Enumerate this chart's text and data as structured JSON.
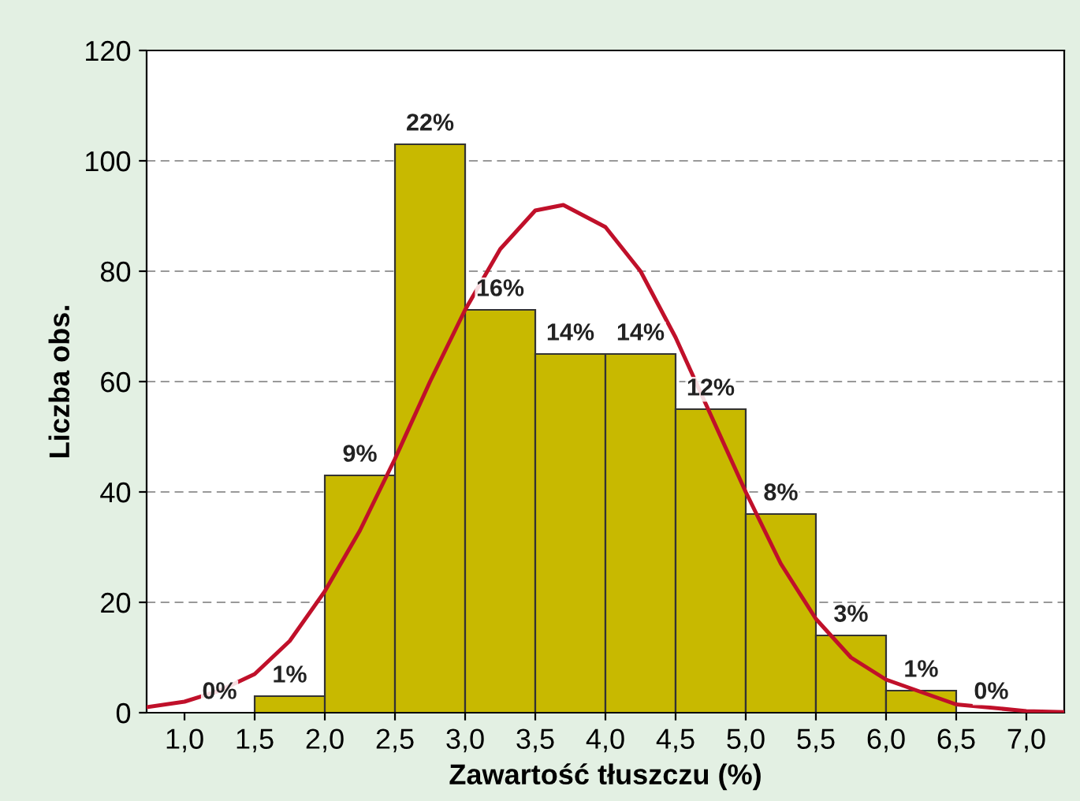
{
  "chart_data": {
    "type": "histogram",
    "xlabel": "Zawartość tłuszczu (%)",
    "ylabel": "Liczba obs.",
    "bins": [
      1.0,
      1.5,
      2.0,
      2.5,
      3.0,
      3.5,
      4.0,
      4.5,
      5.0,
      5.5,
      6.0,
      6.5,
      7.0
    ],
    "values": [
      0,
      3,
      43,
      103,
      73,
      65,
      65,
      55,
      36,
      14,
      4,
      0
    ],
    "annotations": [
      {
        "text": "0%",
        "x": 1.25,
        "y": 0
      },
      {
        "text": "1%",
        "x": 1.75,
        "y": 3
      },
      {
        "text": "9%",
        "x": 2.25,
        "y": 43
      },
      {
        "text": "22%",
        "x": 2.75,
        "y": 103
      },
      {
        "text": "16%",
        "x": 3.25,
        "y": 73
      },
      {
        "text": "14%",
        "x": 3.75,
        "y": 65
      },
      {
        "text": "14%",
        "x": 4.25,
        "y": 65
      },
      {
        "text": "12%",
        "x": 4.75,
        "y": 55
      },
      {
        "text": "8%",
        "x": 5.25,
        "y": 36
      },
      {
        "text": "3%",
        "x": 5.75,
        "y": 14
      },
      {
        "text": "1%",
        "x": 6.25,
        "y": 4
      },
      {
        "text": "0%",
        "x": 6.75,
        "y": 0
      }
    ],
    "color": "#c8b900",
    "series": [
      {
        "type": "line",
        "color": "#c0102a",
        "x": [
          0.73,
          1.0,
          1.25,
          1.5,
          1.75,
          2.0,
          2.25,
          2.5,
          2.75,
          3.0,
          3.25,
          3.5,
          3.7,
          4.0,
          4.25,
          4.5,
          4.75,
          5.0,
          5.25,
          5.5,
          5.75,
          6.0,
          6.5,
          7.0,
          7.27
        ],
        "values": [
          1,
          2,
          4,
          7,
          13,
          22,
          33,
          46,
          60,
          73,
          84,
          91,
          92,
          88,
          80,
          68,
          54,
          40,
          27,
          17,
          10,
          6,
          1.5,
          0.3,
          0.1
        ]
      }
    ],
    "xlim": [
      0.73,
      7.27
    ],
    "xticks": [
      {
        "value": 1.0,
        "label": "1,0"
      },
      {
        "value": 1.5,
        "label": "1,5"
      },
      {
        "value": 2.0,
        "label": "2,0"
      },
      {
        "value": 2.5,
        "label": "2,5"
      },
      {
        "value": 3.0,
        "label": "3,0"
      },
      {
        "value": 3.5,
        "label": "3,5"
      },
      {
        "value": 4.0,
        "label": "4,0"
      },
      {
        "value": 4.5,
        "label": "4,5"
      },
      {
        "value": 5.0,
        "label": "5,0"
      },
      {
        "value": 5.5,
        "label": "5,5"
      },
      {
        "value": 6.0,
        "label": "6,0"
      },
      {
        "value": 6.5,
        "label": "6,5"
      },
      {
        "value": 7.0,
        "label": "7,0"
      }
    ],
    "ylim": [
      0,
      120
    ],
    "yticks": [
      0,
      20,
      40,
      60,
      80,
      100,
      120
    ],
    "grid": "y"
  }
}
